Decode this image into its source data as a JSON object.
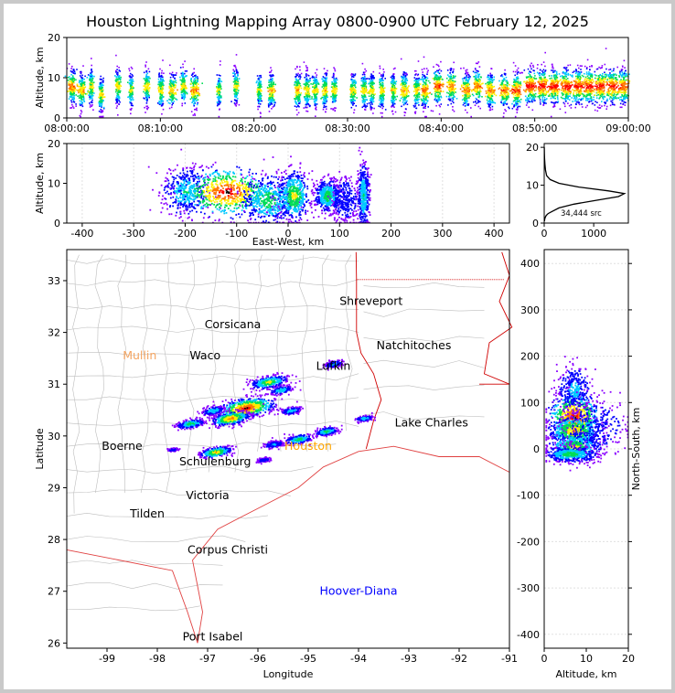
{
  "title": "Houston Lightning Mapping Array 0800-0900 UTC February 12, 2025",
  "chart_data": [
    {
      "type": "scatter",
      "name_hint": "time-altitude",
      "ylabel": "Altitude, km",
      "ylim": [
        0,
        20
      ],
      "yticks": [
        0,
        10,
        20
      ],
      "xticks": [
        "08:00:00",
        "08:10:00",
        "08:20:00",
        "08:30:00",
        "08:40:00",
        "08:50:00",
        "09:00:00"
      ],
      "x_minutes": [
        0,
        10,
        20,
        30,
        40,
        50,
        60
      ],
      "bursts": [
        {
          "t": 0.5,
          "alt": 8,
          "w": 0.6
        },
        {
          "t": 1.5,
          "alt": 7,
          "w": 0.5
        },
        {
          "t": 2.5,
          "alt": 8,
          "w": 0.4
        },
        {
          "t": 3.6,
          "alt": 6,
          "w": 0.4
        },
        {
          "t": 5.4,
          "alt": 8,
          "w": 0.4
        },
        {
          "t": 6.8,
          "alt": 7,
          "w": 0.3
        },
        {
          "t": 8.5,
          "alt": 8,
          "w": 0.4
        },
        {
          "t": 10.0,
          "alt": 7,
          "w": 0.4
        },
        {
          "t": 11.2,
          "alt": 7,
          "w": 0.5
        },
        {
          "t": 12.4,
          "alt": 8,
          "w": 0.4
        },
        {
          "t": 13.6,
          "alt": 7,
          "w": 0.6
        },
        {
          "t": 16.2,
          "alt": 7,
          "w": 0.3
        },
        {
          "t": 18.0,
          "alt": 8,
          "w": 0.4
        },
        {
          "t": 20.5,
          "alt": 7,
          "w": 0.3
        },
        {
          "t": 21.8,
          "alt": 7,
          "w": 0.5
        },
        {
          "t": 24.6,
          "alt": 7,
          "w": 0.5
        },
        {
          "t": 25.6,
          "alt": 7,
          "w": 0.4
        },
        {
          "t": 26.5,
          "alt": 7,
          "w": 0.4
        },
        {
          "t": 27.5,
          "alt": 7,
          "w": 0.4
        },
        {
          "t": 28.5,
          "alt": 7,
          "w": 0.4
        },
        {
          "t": 30.5,
          "alt": 7,
          "w": 0.4
        },
        {
          "t": 31.7,
          "alt": 7,
          "w": 0.4
        },
        {
          "t": 32.5,
          "alt": 7,
          "w": 0.4
        },
        {
          "t": 33.6,
          "alt": 7,
          "w": 0.4
        },
        {
          "t": 34.8,
          "alt": 7,
          "w": 0.4
        },
        {
          "t": 36.0,
          "alt": 7,
          "w": 0.5
        },
        {
          "t": 37.3,
          "alt": 7,
          "w": 0.4
        },
        {
          "t": 38.2,
          "alt": 7,
          "w": 0.6
        },
        {
          "t": 39.6,
          "alt": 8,
          "w": 0.7
        },
        {
          "t": 41.0,
          "alt": 8,
          "w": 0.6
        },
        {
          "t": 42.6,
          "alt": 7,
          "w": 0.6
        },
        {
          "t": 43.8,
          "alt": 8,
          "w": 0.6
        },
        {
          "t": 45.2,
          "alt": 7,
          "w": 0.6
        },
        {
          "t": 46.7,
          "alt": 7,
          "w": 0.6
        },
        {
          "t": 48.0,
          "alt": 7,
          "w": 0.7
        },
        {
          "t": 49.5,
          "alt": 8,
          "w": 0.8
        },
        {
          "t": 50.8,
          "alt": 8,
          "w": 0.8
        },
        {
          "t": 52.0,
          "alt": 8,
          "w": 0.8
        },
        {
          "t": 53.3,
          "alt": 8,
          "w": 0.8
        },
        {
          "t": 54.6,
          "alt": 8,
          "w": 0.8
        },
        {
          "t": 55.8,
          "alt": 8,
          "w": 0.8
        },
        {
          "t": 57.0,
          "alt": 8,
          "w": 0.8
        },
        {
          "t": 58.2,
          "alt": 8,
          "w": 0.8
        },
        {
          "t": 59.4,
          "alt": 8,
          "w": 0.7
        }
      ]
    },
    {
      "type": "heatmap",
      "name_hint": "east-west-altitude",
      "xlabel": "East-West, km",
      "ylabel": "Altitude, km",
      "xlim": [
        -430,
        430
      ],
      "ylim": [
        0,
        20
      ],
      "xticks": [
        -400,
        -300,
        -200,
        -100,
        0,
        100,
        200,
        300,
        400
      ],
      "yticks": [
        0,
        10,
        20
      ],
      "cells": [
        {
          "x": -200,
          "alt": 8,
          "sx": 22,
          "sa": 3,
          "i": 0.5
        },
        {
          "x": -120,
          "alt": 8,
          "sx": 45,
          "sa": 3,
          "i": 1.0
        },
        {
          "x": -40,
          "alt": 6,
          "sx": 25,
          "sa": 3,
          "i": 0.6
        },
        {
          "x": 10,
          "alt": 7,
          "sx": 15,
          "sa": 3,
          "i": 0.7
        },
        {
          "x": 75,
          "alt": 7,
          "sx": 12,
          "sa": 2,
          "i": 0.6
        },
        {
          "x": 110,
          "alt": 6,
          "sx": 14,
          "sa": 3,
          "i": 0.3
        },
        {
          "x": 145,
          "alt": 7,
          "sx": 6,
          "sa": 4,
          "i": 0.5
        }
      ]
    },
    {
      "type": "line",
      "name_hint": "altitude-histogram",
      "xlim": [
        0,
        1700
      ],
      "ylim": [
        0,
        21
      ],
      "xticks": [
        0,
        1000
      ],
      "yticks": [
        0,
        10,
        20
      ],
      "annotation": "34,444 src",
      "x": [
        5,
        10,
        20,
        40,
        80,
        150,
        300,
        600,
        1050,
        1500,
        1620,
        1300,
        700,
        300,
        120,
        50,
        25,
        15,
        8,
        4,
        2
      ],
      "y": [
        0.5,
        1,
        1.5,
        2,
        2.5,
        3,
        4,
        5,
        6,
        7,
        7.8,
        8.5,
        9.5,
        10.5,
        11.5,
        12.5,
        14,
        15.5,
        17,
        18.5,
        20
      ]
    },
    {
      "type": "scatter",
      "name_hint": "plan-view-map",
      "xlabel": "Longitude",
      "ylabel": "Latitude",
      "xlim": [
        -99.8,
        -91
      ],
      "ylim": [
        25.9,
        33.6
      ],
      "xticks": [
        -99,
        -98,
        -97,
        -96,
        -95,
        -94,
        -93,
        -92,
        -91
      ],
      "yticks": [
        26,
        27,
        28,
        29,
        30,
        31,
        32,
        33
      ],
      "cities": [
        {
          "name": "Shreveport",
          "lon": -93.75,
          "lat": 32.6,
          "color": "#000000"
        },
        {
          "name": "Corsicana",
          "lon": -96.5,
          "lat": 32.15,
          "color": "#000000"
        },
        {
          "name": "Natchitoches",
          "lon": -92.9,
          "lat": 31.75,
          "color": "#000000"
        },
        {
          "name": "Mullin",
          "lon": -98.35,
          "lat": 31.55,
          "color": "#f4a460"
        },
        {
          "name": "Waco",
          "lon": -97.05,
          "lat": 31.55,
          "color": "#000000"
        },
        {
          "name": "Lufkin",
          "lon": -94.5,
          "lat": 31.35,
          "color": "#000000"
        },
        {
          "name": "Lake Charles",
          "lon": -92.55,
          "lat": 30.25,
          "color": "#000000"
        },
        {
          "name": "Boerne",
          "lon": -98.7,
          "lat": 29.8,
          "color": "#000000"
        },
        {
          "name": "Houston",
          "lon": -95.0,
          "lat": 29.8,
          "color": "#ffa500"
        },
        {
          "name": "Schulenburg",
          "lon": -96.85,
          "lat": 29.5,
          "color": "#000000"
        },
        {
          "name": "Victoria",
          "lon": -97.0,
          "lat": 28.85,
          "color": "#000000"
        },
        {
          "name": "Tilden",
          "lon": -98.2,
          "lat": 28.5,
          "color": "#000000"
        },
        {
          "name": "Corpus Christi",
          "lon": -96.6,
          "lat": 27.8,
          "color": "#000000"
        },
        {
          "name": "Hoover-Diana",
          "lon": -94.0,
          "lat": 27.0,
          "color": "#0000ff"
        },
        {
          "name": "Port Isabel",
          "lon": -96.9,
          "lat": 26.12,
          "color": "#000000"
        }
      ],
      "storm_cells": [
        {
          "lon": -95.8,
          "lat": 31.05,
          "r": 0.22,
          "i": 0.7
        },
        {
          "lon": -95.55,
          "lat": 30.9,
          "r": 0.14,
          "i": 0.5
        },
        {
          "lon": -96.25,
          "lat": 30.55,
          "r": 0.35,
          "i": 1.0
        },
        {
          "lon": -96.55,
          "lat": 30.35,
          "r": 0.22,
          "i": 0.9
        },
        {
          "lon": -96.9,
          "lat": 30.5,
          "r": 0.14,
          "i": 0.5
        },
        {
          "lon": -97.35,
          "lat": 30.25,
          "r": 0.16,
          "i": 0.6
        },
        {
          "lon": -95.35,
          "lat": 30.5,
          "r": 0.12,
          "i": 0.5
        },
        {
          "lon": -96.85,
          "lat": 29.7,
          "r": 0.18,
          "i": 0.8
        },
        {
          "lon": -95.2,
          "lat": 29.95,
          "r": 0.16,
          "i": 0.6
        },
        {
          "lon": -94.65,
          "lat": 30.1,
          "r": 0.14,
          "i": 0.6
        },
        {
          "lon": -95.7,
          "lat": 29.85,
          "r": 0.12,
          "i": 0.4
        },
        {
          "lon": -93.9,
          "lat": 30.35,
          "r": 0.1,
          "i": 0.5
        },
        {
          "lon": -94.5,
          "lat": 31.4,
          "r": 0.12,
          "i": 0.4
        },
        {
          "lon": -95.9,
          "lat": 29.55,
          "r": 0.08,
          "i": 0.3
        },
        {
          "lon": -97.7,
          "lat": 29.75,
          "r": 0.06,
          "i": 0.3
        }
      ]
    },
    {
      "type": "heatmap",
      "name_hint": "north-south-altitude",
      "xlabel": "Altitude, km",
      "ylabel": "North-South, km",
      "xlim": [
        0,
        20
      ],
      "ylim": [
        -430,
        430
      ],
      "xticks": [
        0,
        10,
        20
      ],
      "yticks": [
        -400,
        -300,
        -200,
        -100,
        0,
        100,
        200,
        300,
        400
      ],
      "cells": [
        {
          "alt": 7,
          "y": 70,
          "sa": 3,
          "sy": 25,
          "i": 1.0
        },
        {
          "alt": 7,
          "y": 40,
          "sa": 3,
          "sy": 15,
          "i": 0.8
        },
        {
          "alt": 7,
          "y": 5,
          "sa": 3,
          "sy": 15,
          "i": 0.7
        },
        {
          "alt": 7,
          "y": 130,
          "sa": 2,
          "sy": 25,
          "i": 0.4
        },
        {
          "alt": 6,
          "y": -10,
          "sa": 3,
          "sy": 8,
          "i": 0.6
        },
        {
          "alt": 12,
          "y": 50,
          "sa": 4,
          "sy": 30,
          "i": 0.3
        }
      ]
    }
  ]
}
